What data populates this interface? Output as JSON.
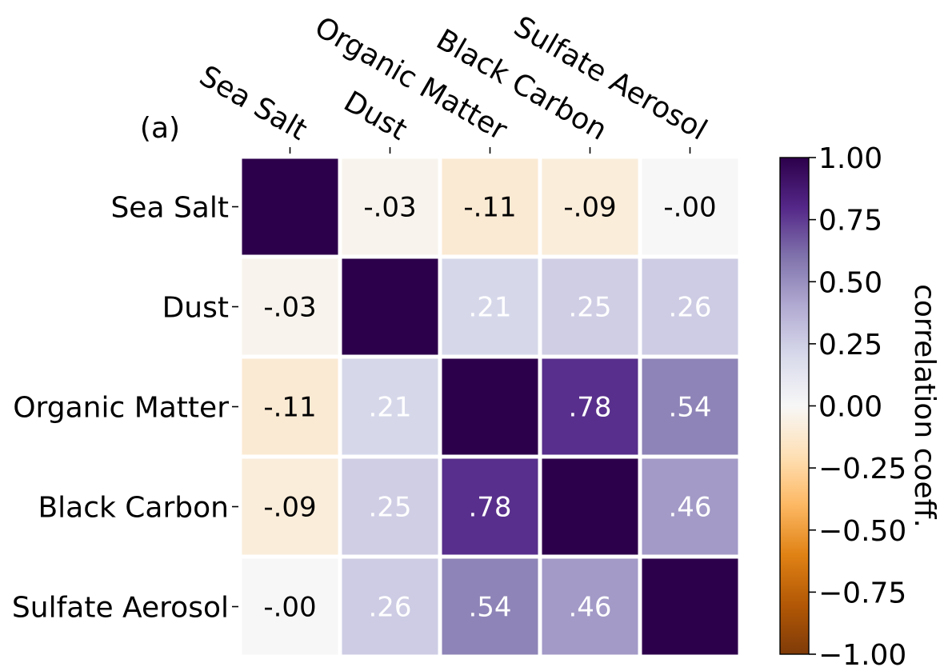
{
  "chart_data": {
    "type": "heatmap",
    "panel_label": "(a)",
    "rows": [
      "Sea Salt",
      "Dust",
      "Organic Matter",
      "Black Carbon",
      "Sulfate Aerosol"
    ],
    "columns": [
      "Sea Salt",
      "Dust",
      "Organic Matter",
      "Black Carbon",
      "Sulfate Aerosol"
    ],
    "values": [
      [
        1.0,
        -0.03,
        -0.11,
        -0.09,
        -0.0
      ],
      [
        -0.03,
        1.0,
        0.21,
        0.25,
        0.26
      ],
      [
        -0.11,
        0.21,
        1.0,
        0.78,
        0.54
      ],
      [
        -0.09,
        0.25,
        0.78,
        1.0,
        0.46
      ],
      [
        -0.0,
        0.26,
        0.54,
        0.46,
        1.0
      ]
    ],
    "cell_labels": [
      [
        "",
        "-.03",
        "-.11",
        "-.09",
        "-.00"
      ],
      [
        "-.03",
        "",
        ".21",
        ".25",
        ".26"
      ],
      [
        "-.11",
        ".21",
        "",
        ".78",
        ".54"
      ],
      [
        "-.09",
        ".25",
        ".78",
        "",
        ".46"
      ],
      [
        "-.00",
        ".26",
        ".54",
        ".46",
        ""
      ]
    ],
    "colorbar": {
      "label": "correlation coeff.",
      "range": [
        -1.0,
        1.0
      ],
      "ticks": [
        "1.00",
        "0.75",
        "0.50",
        "0.25",
        "0.00",
        "−0.25",
        "−0.50",
        "−0.75",
        "−1.00"
      ],
      "tick_values": [
        1.0,
        0.75,
        0.5,
        0.25,
        0.0,
        -0.25,
        -0.5,
        -0.75,
        -1.0
      ],
      "colormap": "PuOr",
      "color_stops": [
        "#7f3b08",
        "#b35806",
        "#e08214",
        "#fdb863",
        "#fee0b6",
        "#f7f7f7",
        "#d8daeb",
        "#b2abd2",
        "#8073ac",
        "#542788",
        "#2d004b"
      ]
    }
  }
}
